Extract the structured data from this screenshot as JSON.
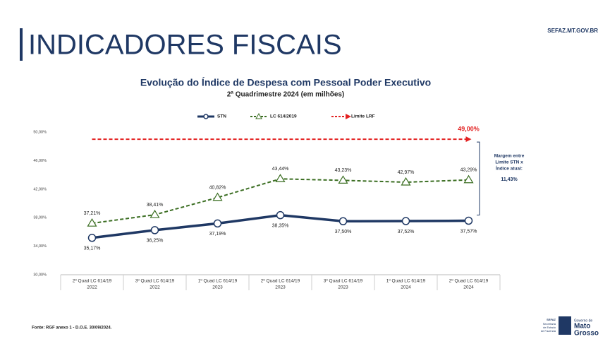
{
  "header": {
    "title": "INDICADORES FISCAIS",
    "site": "SEFAZ.MT.GOV.BR"
  },
  "chart_data": {
    "type": "line",
    "title": "Evolução do Índice de Despesa com Pessoal Poder Executivo",
    "subtitle": "2ª Quadrimestre 2024 (em milhões)",
    "categories": [
      [
        "2º Quad LC 614/19",
        "2022"
      ],
      [
        "3º Quad LC 614/19",
        "2022"
      ],
      [
        "1º Quad LC 614/19",
        "2023"
      ],
      [
        "2º Quad LC 614/19",
        "2023"
      ],
      [
        "3º Quad LC 614/19",
        "2023"
      ],
      [
        "1º Quad LC 614/19",
        "2024"
      ],
      [
        "2º Quad LC 614/19",
        "2024"
      ]
    ],
    "series": [
      {
        "name": "STN",
        "color": "#1f3864",
        "style": "solid",
        "marker": "circle",
        "values": [
          35.17,
          36.25,
          37.19,
          38.35,
          37.5,
          37.52,
          37.57
        ],
        "value_labels": [
          "35,17%",
          "36,25%",
          "37,19%",
          "38,35%",
          "37,50%",
          "37,52%",
          "37,57%"
        ]
      },
      {
        "name": "LC 614/2019",
        "color": "#3b6e22",
        "style": "dashed",
        "marker": "triangle",
        "values": [
          37.21,
          38.41,
          40.82,
          43.44,
          43.23,
          42.97,
          43.29
        ],
        "value_labels": [
          "37,21%",
          "38,41%",
          "40,82%",
          "43,44%",
          "43,23%",
          "42,97%",
          "43,29%"
        ]
      },
      {
        "name": "Limite LRF",
        "color": "#e32222",
        "style": "dashed-arrow",
        "marker": "none",
        "values": [
          49,
          49,
          49,
          49,
          49,
          49,
          49
        ],
        "value_labels": [
          null,
          null,
          null,
          null,
          null,
          null,
          "49,00%"
        ]
      }
    ],
    "ylim": [
      30,
      50
    ],
    "yticks": [
      {
        "value": 30,
        "label": "30,00%"
      },
      {
        "value": 34,
        "label": "34,00%"
      },
      {
        "value": 38,
        "label": "38,00%"
      },
      {
        "value": 42,
        "label": "42,00%"
      },
      {
        "value": 46,
        "label": "46,00%"
      },
      {
        "value": 50,
        "label": "50,00%"
      }
    ],
    "grid": false,
    "annotation": {
      "lines": [
        "Margem entre",
        "Limite STN x",
        "Índice atual:"
      ],
      "value_label": "11,43%"
    }
  },
  "source": "Fonte: RGF anexo 1 - D.O.E. 30/09/2024.",
  "logo": {
    "agency": [
      "SEFAZ",
      "Secretaria",
      "de Estado",
      "de Fazenda"
    ],
    "gov": [
      "Governo de",
      "Mato",
      "Grosso"
    ]
  }
}
